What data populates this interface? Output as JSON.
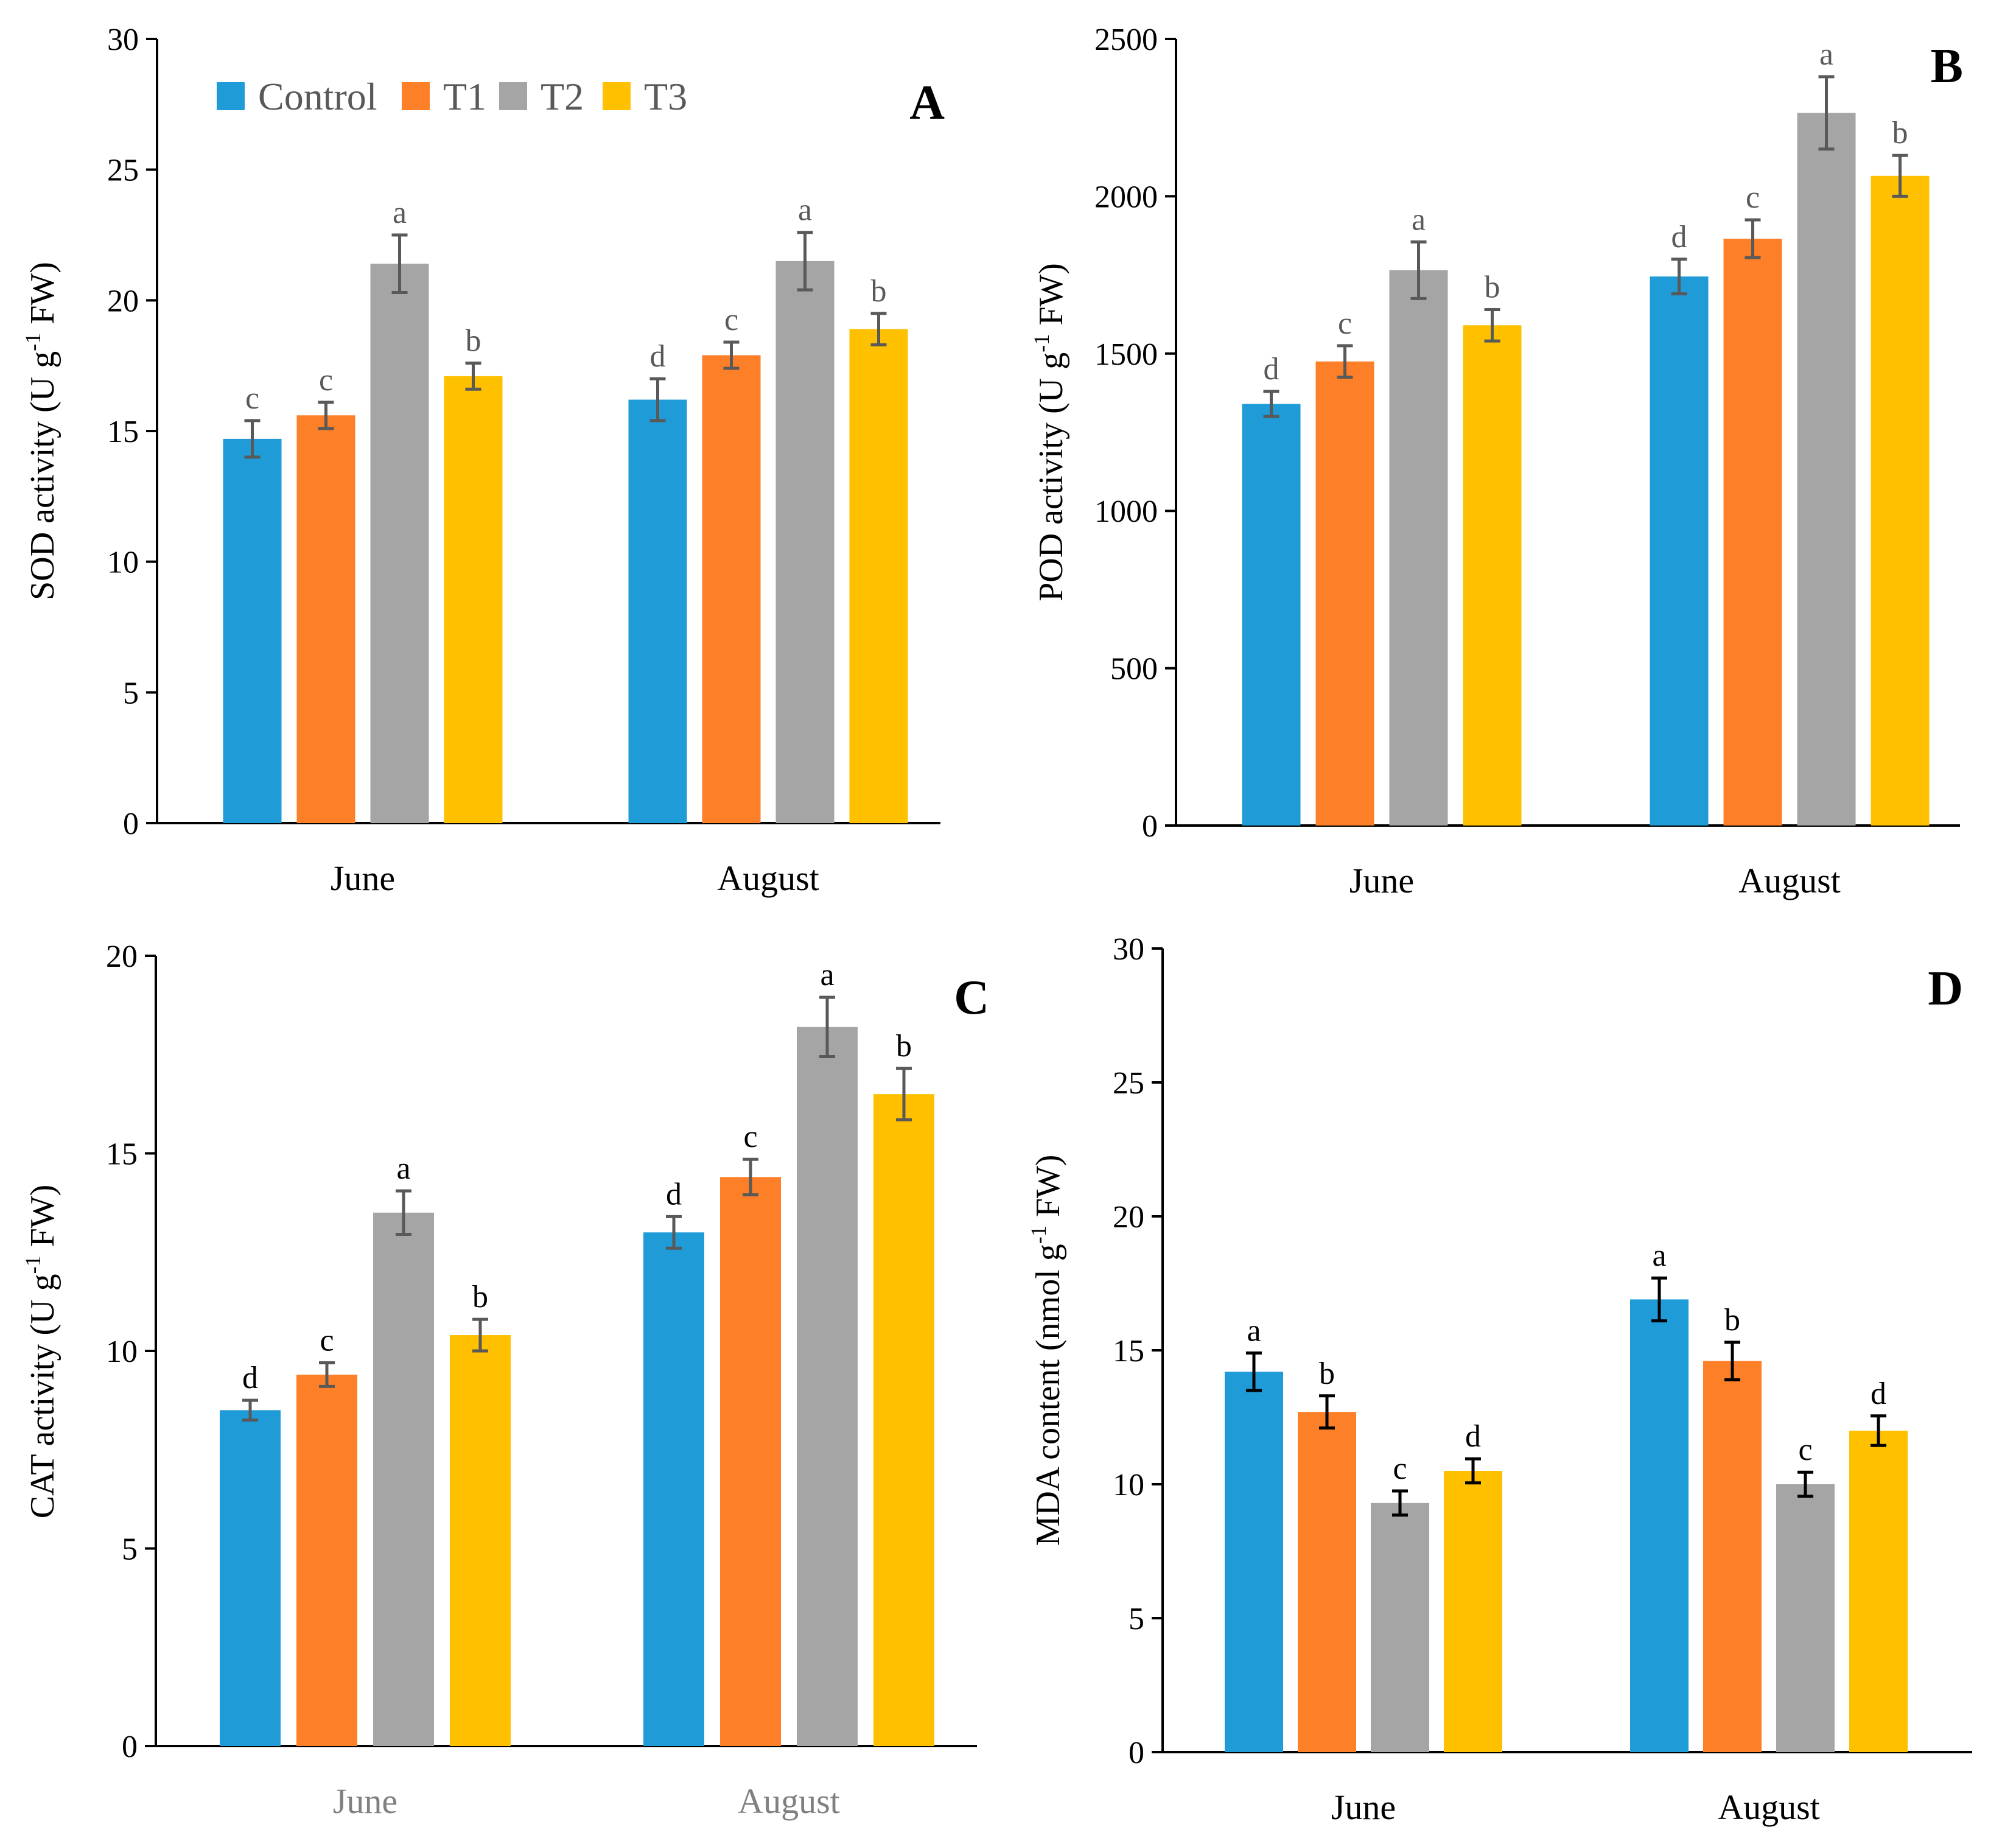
{
  "colors": {
    "Control": "#1f9bd7",
    "T1": "#fd7f28",
    "T2": "#a5a5a5",
    "T3": "#ffc000"
  },
  "legend": [
    "Control",
    "T1",
    "T2",
    "T3"
  ],
  "chart_data": [
    {
      "id": "A",
      "type": "bar",
      "panel_label": "A",
      "ylabel_parts": [
        "SOD activity (U g",
        "-1",
        " FW)"
      ],
      "categories": [
        "June",
        "August"
      ],
      "ylim": [
        0,
        30
      ],
      "yticks": [
        0,
        5,
        10,
        15,
        20,
        25,
        30
      ],
      "series": [
        {
          "name": "Control",
          "values": [
            14.7,
            16.2
          ],
          "errors": [
            0.7,
            0.8
          ],
          "letters": [
            "c",
            "d"
          ]
        },
        {
          "name": "T1",
          "values": [
            15.6,
            17.9
          ],
          "errors": [
            0.5,
            0.5
          ],
          "letters": [
            "c",
            "c"
          ]
        },
        {
          "name": "T2",
          "values": [
            21.4,
            21.5
          ],
          "errors": [
            1.1,
            1.1
          ],
          "letters": [
            "a",
            "a"
          ]
        },
        {
          "name": "T3",
          "values": [
            17.1,
            18.9
          ],
          "errors": [
            0.5,
            0.6
          ],
          "letters": [
            "b",
            "b"
          ]
        }
      ]
    },
    {
      "id": "B",
      "type": "bar",
      "panel_label": "B",
      "ylabel_parts": [
        "POD activity (U g",
        "-1",
        " FW)"
      ],
      "categories": [
        "June",
        "August"
      ],
      "ylim": [
        0,
        2500
      ],
      "yticks": [
        0,
        500,
        1000,
        1500,
        2000,
        2500
      ],
      "series": [
        {
          "name": "Control",
          "values": [
            1340,
            1745
          ],
          "errors": [
            40,
            55
          ],
          "letters": [
            "d",
            "d"
          ]
        },
        {
          "name": "T1",
          "values": [
            1475,
            1865
          ],
          "errors": [
            50,
            60
          ],
          "letters": [
            "c",
            "c"
          ]
        },
        {
          "name": "T2",
          "values": [
            1765,
            2265
          ],
          "errors": [
            90,
            115
          ],
          "letters": [
            "a",
            "a"
          ]
        },
        {
          "name": "T3",
          "values": [
            1590,
            2065
          ],
          "errors": [
            50,
            65
          ],
          "letters": [
            "b",
            "b"
          ]
        }
      ]
    },
    {
      "id": "C",
      "type": "bar",
      "panel_label": "C",
      "ylabel_parts": [
        "CAT activity (U g",
        "-1",
        " FW)"
      ],
      "categories": [
        "June",
        "August"
      ],
      "ylim": [
        0,
        20
      ],
      "yticks": [
        0,
        5,
        10,
        15,
        20
      ],
      "series": [
        {
          "name": "Control",
          "values": [
            8.5,
            13.0
          ],
          "errors": [
            0.25,
            0.4
          ],
          "letters": [
            "d",
            "d"
          ]
        },
        {
          "name": "T1",
          "values": [
            9.4,
            14.4
          ],
          "errors": [
            0.3,
            0.45
          ],
          "letters": [
            "c",
            "c"
          ]
        },
        {
          "name": "T2",
          "values": [
            13.5,
            18.2
          ],
          "errors": [
            0.55,
            0.75
          ],
          "letters": [
            "a",
            "a"
          ]
        },
        {
          "name": "T3",
          "values": [
            10.4,
            16.5
          ],
          "errors": [
            0.4,
            0.65
          ],
          "letters": [
            "b",
            "b"
          ]
        }
      ]
    },
    {
      "id": "D",
      "type": "bar",
      "panel_label": "D",
      "ylabel_parts": [
        "MDA content (nmol g",
        "-1",
        " FW)"
      ],
      "categories": [
        "June",
        "August"
      ],
      "ylim": [
        0,
        30
      ],
      "yticks": [
        0,
        5,
        10,
        15,
        20,
        25,
        30
      ],
      "series": [
        {
          "name": "Control",
          "values": [
            14.2,
            16.9
          ],
          "errors": [
            0.7,
            0.8
          ],
          "letters": [
            "a",
            "a"
          ]
        },
        {
          "name": "T1",
          "values": [
            12.7,
            14.6
          ],
          "errors": [
            0.6,
            0.7
          ],
          "letters": [
            "b",
            "b"
          ]
        },
        {
          "name": "T2",
          "values": [
            9.3,
            10.0
          ],
          "errors": [
            0.45,
            0.45
          ],
          "letters": [
            "c",
            "c"
          ]
        },
        {
          "name": "T3",
          "values": [
            10.5,
            12.0
          ],
          "errors": [
            0.45,
            0.55
          ],
          "letters": [
            "d",
            "d"
          ]
        }
      ]
    }
  ]
}
